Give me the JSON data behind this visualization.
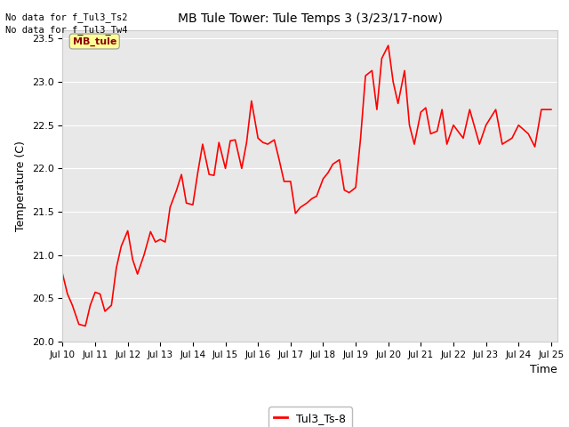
{
  "title": "MB Tule Tower: Tule Temps 3 (3/23/17-now)",
  "xlabel": "Time",
  "ylabel": "Temperature (C)",
  "line_color": "#ff0000",
  "line_width": 1.2,
  "bg_color": "#e8e8e8",
  "ylim": [
    20.0,
    23.6
  ],
  "yticks": [
    20.0,
    20.5,
    21.0,
    21.5,
    22.0,
    22.5,
    23.0,
    23.5
  ],
  "no_data_text1": "No data for f_Tul3_Ts2",
  "no_data_text2": "No data for f_Tul3_Tw4",
  "mb_tule_label": "MB_tule",
  "legend_label": "Tul3_Ts-8",
  "x_tick_labels": [
    "Jul 10",
    "Jul 11",
    "Jul 12",
    "Jul 13",
    "Jul 14",
    "Jul 15",
    "Jul 16",
    "Jul 17",
    "Jul 18",
    "Jul 19",
    "Jul 20",
    "Jul 21",
    "Jul 22",
    "Jul 23",
    "Jul 24",
    "Jul 25"
  ],
  "time_series": [
    [
      0.0,
      20.78
    ],
    [
      0.15,
      20.55
    ],
    [
      0.3,
      20.42
    ],
    [
      0.5,
      20.2
    ],
    [
      0.7,
      20.18
    ],
    [
      0.85,
      20.42
    ],
    [
      1.0,
      20.57
    ],
    [
      1.15,
      20.55
    ],
    [
      1.3,
      20.35
    ],
    [
      1.5,
      20.42
    ],
    [
      1.65,
      20.85
    ],
    [
      1.8,
      21.1
    ],
    [
      2.0,
      21.28
    ],
    [
      2.15,
      20.95
    ],
    [
      2.3,
      20.78
    ],
    [
      2.5,
      21.0
    ],
    [
      2.7,
      21.27
    ],
    [
      2.85,
      21.15
    ],
    [
      3.0,
      21.18
    ],
    [
      3.15,
      21.15
    ],
    [
      3.3,
      21.55
    ],
    [
      3.5,
      21.75
    ],
    [
      3.65,
      21.93
    ],
    [
      3.8,
      21.6
    ],
    [
      4.0,
      21.58
    ],
    [
      4.15,
      21.95
    ],
    [
      4.3,
      22.28
    ],
    [
      4.5,
      21.93
    ],
    [
      4.65,
      21.92
    ],
    [
      4.8,
      22.3
    ],
    [
      5.0,
      22.0
    ],
    [
      5.15,
      22.32
    ],
    [
      5.3,
      22.33
    ],
    [
      5.5,
      22.0
    ],
    [
      5.65,
      22.3
    ],
    [
      5.8,
      22.78
    ],
    [
      6.0,
      22.35
    ],
    [
      6.15,
      22.3
    ],
    [
      6.3,
      22.28
    ],
    [
      6.5,
      22.33
    ],
    [
      6.65,
      22.1
    ],
    [
      6.8,
      21.85
    ],
    [
      7.0,
      21.85
    ],
    [
      7.15,
      21.48
    ],
    [
      7.3,
      21.55
    ],
    [
      7.5,
      21.6
    ],
    [
      7.65,
      21.65
    ],
    [
      7.8,
      21.68
    ],
    [
      8.0,
      21.88
    ],
    [
      8.15,
      21.95
    ],
    [
      8.3,
      22.05
    ],
    [
      8.5,
      22.1
    ],
    [
      8.65,
      21.75
    ],
    [
      8.8,
      21.72
    ],
    [
      9.0,
      21.78
    ],
    [
      9.15,
      22.35
    ],
    [
      9.3,
      23.07
    ],
    [
      9.5,
      23.13
    ],
    [
      9.65,
      22.68
    ],
    [
      9.8,
      23.27
    ],
    [
      10.0,
      23.42
    ],
    [
      10.15,
      23.0
    ],
    [
      10.3,
      22.75
    ],
    [
      10.5,
      23.13
    ],
    [
      10.65,
      22.5
    ],
    [
      10.8,
      22.28
    ],
    [
      11.0,
      22.65
    ],
    [
      11.15,
      22.7
    ],
    [
      11.3,
      22.4
    ],
    [
      11.5,
      22.43
    ],
    [
      11.65,
      22.68
    ],
    [
      11.8,
      22.28
    ],
    [
      12.0,
      22.5
    ],
    [
      12.3,
      22.35
    ],
    [
      12.5,
      22.68
    ],
    [
      12.8,
      22.28
    ],
    [
      13.0,
      22.5
    ],
    [
      13.3,
      22.68
    ],
    [
      13.5,
      22.28
    ],
    [
      13.8,
      22.35
    ],
    [
      14.0,
      22.5
    ],
    [
      14.3,
      22.4
    ],
    [
      14.5,
      22.25
    ],
    [
      14.7,
      22.68
    ],
    [
      15.0,
      22.68
    ]
  ]
}
